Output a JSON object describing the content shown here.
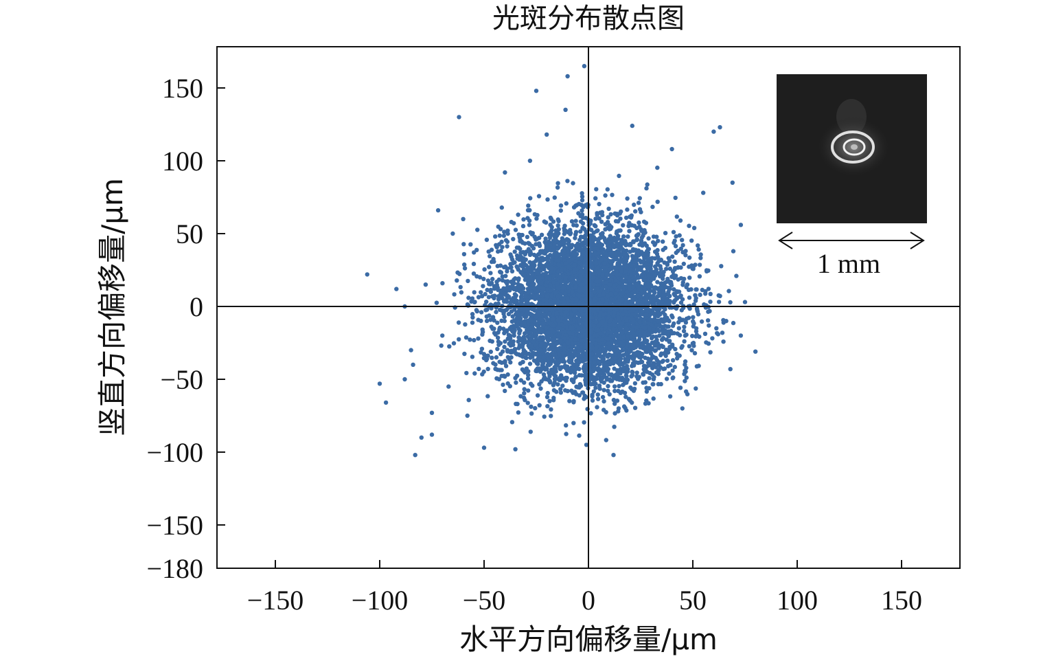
{
  "chart_data": {
    "type": "scatter",
    "title": "光斑分布散点图",
    "xlabel": "水平方向偏移量/μm",
    "ylabel": "竖直方向偏移量/μm",
    "xlim": [
      -180,
      180
    ],
    "ylim": [
      -180,
      180
    ],
    "xticks": [
      -150,
      -100,
      -50,
      0,
      50,
      100,
      150
    ],
    "xtick_labels": [
      "−150",
      "−100",
      "−50",
      "0",
      "50",
      "100",
      "150"
    ],
    "yticks": [
      150,
      100,
      50,
      0,
      -50,
      -100,
      -150,
      -180
    ],
    "ytick_labels": [
      "150",
      "100",
      "50",
      "0",
      "−50",
      "−100",
      "−150",
      "−180"
    ],
    "grid": false,
    "zero_lines": true,
    "marker_color": "#3B6BA5",
    "distribution": {
      "shape": "approximately circular 2D Gaussian cloud centered near the origin",
      "center": [
        0,
        0
      ],
      "std_x": 22,
      "std_y": 27,
      "n_points": 6000
    },
    "points": [
      [
        -2,
        165
      ],
      [
        -10,
        158
      ],
      [
        -25,
        148
      ],
      [
        -11,
        135
      ],
      [
        -62,
        130
      ],
      [
        63,
        123
      ],
      [
        21,
        124
      ],
      [
        -106,
        22
      ],
      [
        -92,
        12
      ],
      [
        -83,
        -102
      ],
      [
        -100,
        -53
      ],
      [
        -97,
        -66
      ],
      [
        80,
        -31
      ],
      [
        75,
        3
      ],
      [
        -88,
        -50
      ],
      [
        -85,
        -30
      ],
      [
        -80,
        -90
      ],
      [
        -75,
        -73
      ],
      [
        -75,
        -88
      ],
      [
        12,
        -102
      ],
      [
        -1,
        -95
      ],
      [
        -35,
        -98
      ],
      [
        -50,
        -97
      ],
      [
        -58,
        -75
      ],
      [
        -72,
        66
      ],
      [
        -65,
        50
      ],
      [
        69,
        85
      ],
      [
        73,
        56
      ],
      [
        60,
        120
      ],
      [
        -28,
        100
      ],
      [
        -20,
        118
      ],
      [
        -70,
        -20
      ],
      [
        -84,
        -40
      ],
      [
        -67,
        -55
      ],
      [
        -40,
        92
      ],
      [
        40,
        108
      ],
      [
        45,
        -70
      ],
      [
        68,
        -43
      ],
      [
        73,
        -20
      ],
      [
        66,
        -10
      ],
      [
        -88,
        0
      ],
      [
        -78,
        15
      ],
      [
        -60,
        60
      ],
      [
        55,
        78
      ]
    ],
    "inset": {
      "type": "image",
      "description_color": "#1e1e1e",
      "scale_label": "1 mm"
    }
  }
}
